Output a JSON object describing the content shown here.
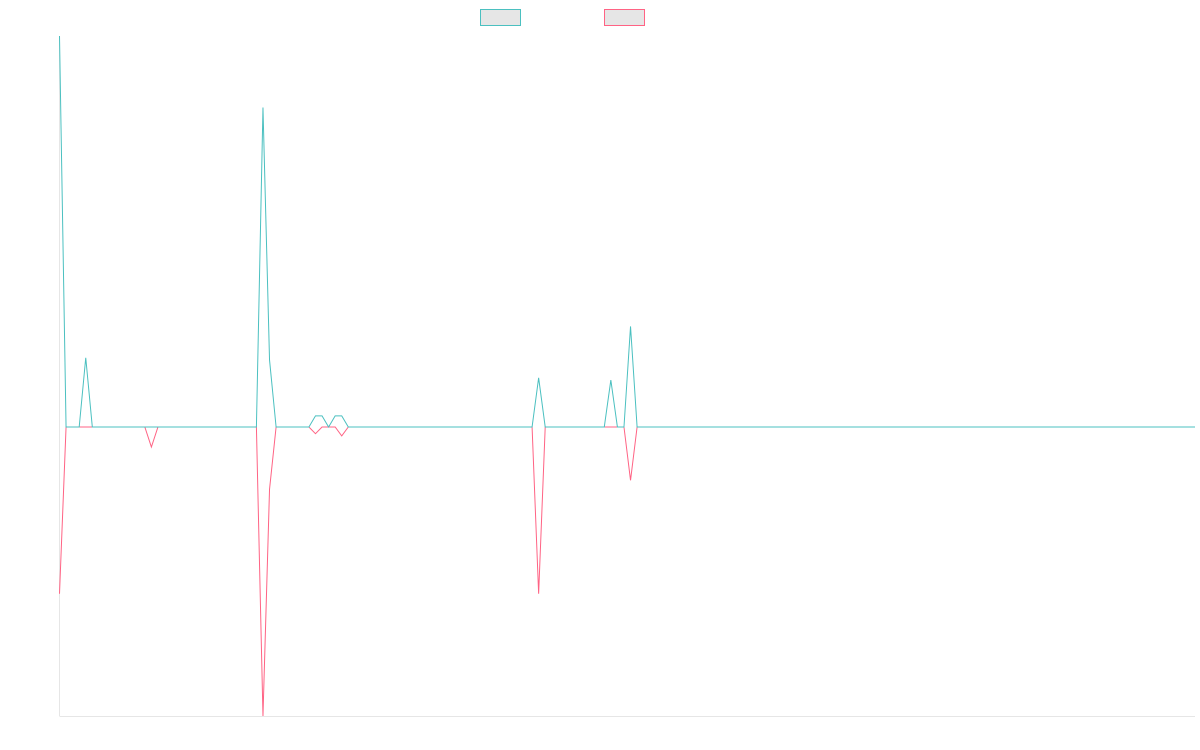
{
  "colors": {
    "series_a": "#4bc0c0",
    "series_b": "#ff6384",
    "legend_fill": "#e6e6e6",
    "axis": "#e6e6e6"
  },
  "chart_data": {
    "type": "line",
    "title": "",
    "xlabel": "",
    "ylabel": "",
    "x_count": 174,
    "ylim": [
      -130,
      175
    ],
    "grid": false,
    "legend": "top-center",
    "series": [
      {
        "color_key": "series_a",
        "points": [
          [
            0,
            175
          ],
          [
            1,
            0
          ],
          [
            2,
            0
          ],
          [
            3,
            0
          ],
          [
            4,
            31
          ],
          [
            5,
            0
          ],
          [
            6,
            0
          ],
          [
            7,
            0
          ],
          [
            8,
            0
          ],
          [
            9,
            0
          ],
          [
            10,
            0
          ],
          [
            11,
            0
          ],
          [
            12,
            0
          ],
          [
            13,
            0
          ],
          [
            14,
            0
          ],
          [
            15,
            0
          ],
          [
            16,
            0
          ],
          [
            17,
            0
          ],
          [
            18,
            0
          ],
          [
            19,
            0
          ],
          [
            20,
            0
          ],
          [
            21,
            0
          ],
          [
            22,
            0
          ],
          [
            23,
            0
          ],
          [
            24,
            0
          ],
          [
            25,
            0
          ],
          [
            26,
            0
          ],
          [
            27,
            0
          ],
          [
            28,
            0
          ],
          [
            29,
            0
          ],
          [
            30,
            0
          ],
          [
            31,
            143
          ],
          [
            32,
            30
          ],
          [
            33,
            0
          ],
          [
            34,
            0
          ],
          [
            35,
            0
          ],
          [
            36,
            0
          ],
          [
            37,
            0
          ],
          [
            38,
            0
          ],
          [
            39,
            5
          ],
          [
            40,
            5
          ],
          [
            41,
            0
          ],
          [
            42,
            5
          ],
          [
            43,
            5
          ],
          [
            44,
            0
          ],
          [
            45,
            0
          ],
          [
            46,
            0
          ],
          [
            47,
            0
          ],
          [
            48,
            0
          ],
          [
            49,
            0
          ],
          [
            50,
            0
          ],
          [
            51,
            0
          ],
          [
            52,
            0
          ],
          [
            53,
            0
          ],
          [
            54,
            0
          ],
          [
            55,
            0
          ],
          [
            56,
            0
          ],
          [
            57,
            0
          ],
          [
            58,
            0
          ],
          [
            59,
            0
          ],
          [
            60,
            0
          ],
          [
            61,
            0
          ],
          [
            62,
            0
          ],
          [
            63,
            0
          ],
          [
            64,
            0
          ],
          [
            65,
            0
          ],
          [
            66,
            0
          ],
          [
            67,
            0
          ],
          [
            68,
            0
          ],
          [
            69,
            0
          ],
          [
            70,
            0
          ],
          [
            71,
            0
          ],
          [
            72,
            0
          ],
          [
            73,
            22
          ],
          [
            74,
            0
          ],
          [
            75,
            0
          ],
          [
            76,
            0
          ],
          [
            77,
            0
          ],
          [
            78,
            0
          ],
          [
            79,
            0
          ],
          [
            80,
            0
          ],
          [
            81,
            0
          ],
          [
            82,
            0
          ],
          [
            83,
            0
          ],
          [
            84,
            21
          ],
          [
            85,
            0
          ],
          [
            86,
            0
          ],
          [
            87,
            45
          ],
          [
            88,
            0
          ],
          [
            89,
            0
          ],
          [
            90,
            0
          ],
          [
            91,
            0
          ],
          [
            92,
            0
          ],
          [
            93,
            0
          ],
          [
            94,
            0
          ],
          [
            95,
            0
          ],
          [
            96,
            0
          ],
          [
            97,
            0
          ],
          [
            98,
            0
          ],
          [
            99,
            0
          ],
          [
            100,
            0
          ],
          [
            101,
            0
          ],
          [
            102,
            0
          ],
          [
            103,
            0
          ],
          [
            104,
            0
          ],
          [
            105,
            0
          ],
          [
            106,
            0
          ],
          [
            107,
            0
          ],
          [
            108,
            0
          ],
          [
            109,
            0
          ],
          [
            110,
            0
          ],
          [
            111,
            0
          ],
          [
            112,
            0
          ],
          [
            113,
            0
          ],
          [
            114,
            0
          ],
          [
            115,
            0
          ],
          [
            116,
            0
          ],
          [
            117,
            0
          ],
          [
            118,
            0
          ],
          [
            119,
            0
          ],
          [
            120,
            0
          ],
          [
            121,
            0
          ],
          [
            122,
            0
          ],
          [
            123,
            0
          ],
          [
            124,
            0
          ],
          [
            125,
            0
          ],
          [
            126,
            0
          ],
          [
            127,
            0
          ],
          [
            128,
            0
          ],
          [
            129,
            0
          ],
          [
            130,
            0
          ],
          [
            131,
            0
          ],
          [
            132,
            0
          ],
          [
            133,
            0
          ],
          [
            134,
            0
          ],
          [
            135,
            0
          ],
          [
            136,
            0
          ],
          [
            137,
            0
          ],
          [
            138,
            0
          ],
          [
            139,
            0
          ],
          [
            140,
            0
          ],
          [
            141,
            0
          ],
          [
            142,
            0
          ],
          [
            143,
            0
          ],
          [
            144,
            0
          ],
          [
            145,
            0
          ],
          [
            146,
            0
          ],
          [
            147,
            0
          ],
          [
            148,
            0
          ],
          [
            149,
            0
          ],
          [
            150,
            0
          ],
          [
            151,
            0
          ],
          [
            152,
            0
          ],
          [
            153,
            0
          ],
          [
            154,
            0
          ],
          [
            155,
            0
          ],
          [
            156,
            0
          ],
          [
            157,
            0
          ],
          [
            158,
            0
          ],
          [
            159,
            0
          ],
          [
            160,
            0
          ],
          [
            161,
            0
          ],
          [
            162,
            0
          ],
          [
            163,
            0
          ],
          [
            164,
            0
          ],
          [
            165,
            0
          ],
          [
            166,
            0
          ],
          [
            167,
            0
          ],
          [
            168,
            0
          ],
          [
            169,
            0
          ],
          [
            170,
            0
          ],
          [
            171,
            0
          ],
          [
            172,
            0
          ],
          [
            173,
            0
          ]
        ]
      },
      {
        "color_key": "series_b",
        "points": [
          [
            0,
            -75
          ],
          [
            1,
            0
          ],
          [
            2,
            0
          ],
          [
            3,
            0
          ],
          [
            4,
            0
          ],
          [
            5,
            0
          ],
          [
            6,
            0
          ],
          [
            7,
            0
          ],
          [
            8,
            0
          ],
          [
            9,
            0
          ],
          [
            10,
            0
          ],
          [
            11,
            0
          ],
          [
            12,
            0
          ],
          [
            13,
            0
          ],
          [
            14,
            -9
          ],
          [
            15,
            0
          ],
          [
            16,
            0
          ],
          [
            17,
            0
          ],
          [
            18,
            0
          ],
          [
            19,
            0
          ],
          [
            20,
            0
          ],
          [
            21,
            0
          ],
          [
            22,
            0
          ],
          [
            23,
            0
          ],
          [
            24,
            0
          ],
          [
            25,
            0
          ],
          [
            26,
            0
          ],
          [
            27,
            0
          ],
          [
            28,
            0
          ],
          [
            29,
            0
          ],
          [
            30,
            0
          ],
          [
            31,
            -130
          ],
          [
            32,
            -28
          ],
          [
            33,
            0
          ],
          [
            34,
            0
          ],
          [
            35,
            0
          ],
          [
            36,
            0
          ],
          [
            37,
            0
          ],
          [
            38,
            0
          ],
          [
            39,
            -3
          ],
          [
            40,
            0
          ],
          [
            41,
            0
          ],
          [
            42,
            0
          ],
          [
            43,
            -4
          ],
          [
            44,
            0
          ],
          [
            45,
            0
          ],
          [
            46,
            0
          ],
          [
            47,
            0
          ],
          [
            48,
            0
          ],
          [
            49,
            0
          ],
          [
            50,
            0
          ],
          [
            51,
            0
          ],
          [
            52,
            0
          ],
          [
            53,
            0
          ],
          [
            54,
            0
          ],
          [
            55,
            0
          ],
          [
            56,
            0
          ],
          [
            57,
            0
          ],
          [
            58,
            0
          ],
          [
            59,
            0
          ],
          [
            60,
            0
          ],
          [
            61,
            0
          ],
          [
            62,
            0
          ],
          [
            63,
            0
          ],
          [
            64,
            0
          ],
          [
            65,
            0
          ],
          [
            66,
            0
          ],
          [
            67,
            0
          ],
          [
            68,
            0
          ],
          [
            69,
            0
          ],
          [
            70,
            0
          ],
          [
            71,
            0
          ],
          [
            72,
            0
          ],
          [
            73,
            -75
          ],
          [
            74,
            0
          ],
          [
            75,
            0
          ],
          [
            76,
            0
          ],
          [
            77,
            0
          ],
          [
            78,
            0
          ],
          [
            79,
            0
          ],
          [
            80,
            0
          ],
          [
            81,
            0
          ],
          [
            82,
            0
          ],
          [
            83,
            0
          ],
          [
            84,
            0
          ],
          [
            85,
            0
          ],
          [
            86,
            0
          ],
          [
            87,
            -24
          ],
          [
            88,
            0
          ],
          [
            89,
            0
          ],
          [
            90,
            0
          ],
          [
            91,
            0
          ],
          [
            92,
            0
          ],
          [
            93,
            0
          ],
          [
            94,
            0
          ],
          [
            95,
            0
          ],
          [
            96,
            0
          ],
          [
            97,
            0
          ],
          [
            98,
            0
          ],
          [
            99,
            0
          ],
          [
            100,
            0
          ],
          [
            101,
            0
          ],
          [
            102,
            0
          ],
          [
            103,
            0
          ],
          [
            104,
            0
          ],
          [
            105,
            0
          ],
          [
            106,
            0
          ],
          [
            107,
            0
          ],
          [
            108,
            0
          ],
          [
            109,
            0
          ],
          [
            110,
            0
          ],
          [
            111,
            0
          ],
          [
            112,
            0
          ],
          [
            113,
            0
          ],
          [
            114,
            0
          ],
          [
            115,
            0
          ],
          [
            116,
            0
          ],
          [
            117,
            0
          ],
          [
            118,
            0
          ],
          [
            119,
            0
          ],
          [
            120,
            0
          ],
          [
            121,
            0
          ],
          [
            122,
            0
          ],
          [
            123,
            0
          ],
          [
            124,
            0
          ],
          [
            125,
            0
          ],
          [
            126,
            0
          ],
          [
            127,
            0
          ],
          [
            128,
            0
          ],
          [
            129,
            0
          ],
          [
            130,
            0
          ],
          [
            131,
            0
          ],
          [
            132,
            0
          ],
          [
            133,
            0
          ],
          [
            134,
            0
          ],
          [
            135,
            0
          ],
          [
            136,
            0
          ],
          [
            137,
            0
          ],
          [
            138,
            0
          ],
          [
            139,
            0
          ],
          [
            140,
            0
          ],
          [
            141,
            0
          ],
          [
            142,
            0
          ],
          [
            143,
            0
          ],
          [
            144,
            0
          ],
          [
            145,
            0
          ],
          [
            146,
            0
          ],
          [
            147,
            0
          ],
          [
            148,
            0
          ],
          [
            149,
            0
          ],
          [
            150,
            0
          ],
          [
            151,
            0
          ],
          [
            152,
            0
          ],
          [
            153,
            0
          ],
          [
            154,
            0
          ],
          [
            155,
            0
          ],
          [
            156,
            0
          ],
          [
            157,
            0
          ],
          [
            158,
            0
          ],
          [
            159,
            0
          ],
          [
            160,
            0
          ],
          [
            161,
            0
          ],
          [
            162,
            0
          ],
          [
            163,
            0
          ],
          [
            164,
            0
          ],
          [
            165,
            0
          ],
          [
            166,
            0
          ],
          [
            167,
            0
          ],
          [
            168,
            0
          ],
          [
            169,
            0
          ],
          [
            170,
            0
          ],
          [
            171,
            0
          ],
          [
            172,
            0
          ],
          [
            173,
            0
          ]
        ]
      }
    ]
  }
}
